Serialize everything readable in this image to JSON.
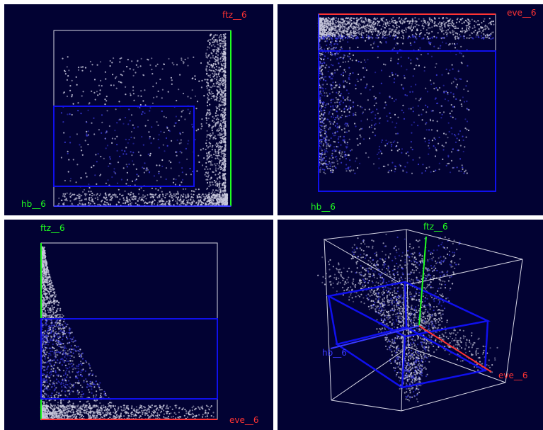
{
  "colors": {
    "background": "#020233",
    "points": "#c8c8dc",
    "gate": "#1010ee",
    "box": "#d8d8e6",
    "axis_hb": "#20ff20",
    "axis_ftz": "#20ff20",
    "axis_eve": "#ff3333",
    "axis_blue": "#3a3aff"
  },
  "chart_data": [
    {
      "type": "scatter",
      "panel": "top-left",
      "xlabel": "hb__6",
      "ylabel": "ftz__6",
      "xlim": [
        0,
        1
      ],
      "ylim": [
        0,
        1
      ],
      "gate": {
        "x": [
          0,
          0.8
        ],
        "y": [
          0.12,
          0.58
        ]
      },
      "clusters": [
        {
          "x": [
            0.86,
            0.97
          ],
          "y": [
            0.0,
            0.98
          ],
          "n": 1100,
          "density_bias": "right"
        },
        {
          "x": [
            0.02,
            0.98
          ],
          "y": [
            0.0,
            0.07
          ],
          "n": 700,
          "density_bias": "right"
        },
        {
          "x": [
            0.04,
            0.88
          ],
          "y": [
            0.05,
            0.85
          ],
          "n": 500,
          "density_bias": "none"
        }
      ]
    },
    {
      "type": "scatter",
      "panel": "top-right",
      "xlabel": "hb__6",
      "ylabel": "eve__6",
      "xlim": [
        0,
        1
      ],
      "ylim": [
        0,
        1
      ],
      "gate": {
        "x": [
          0,
          1
        ],
        "y": [
          0,
          0.88
        ]
      },
      "clusters": [
        {
          "x": [
            0.0,
            0.99
          ],
          "y": [
            0.86,
            0.98
          ],
          "n": 1300,
          "density_bias": "left"
        },
        {
          "x": [
            0.0,
            0.18
          ],
          "y": [
            0.1,
            0.96
          ],
          "n": 700,
          "density_bias": "left"
        },
        {
          "x": [
            0.06,
            0.85
          ],
          "y": [
            0.1,
            0.85
          ],
          "n": 550,
          "density_bias": "none"
        }
      ]
    },
    {
      "type": "scatter",
      "panel": "bottom-left",
      "xlabel": "eve__6",
      "ylabel": "ftz__6",
      "xlim": [
        0,
        1
      ],
      "ylim": [
        0,
        1
      ],
      "gate": {
        "x": [
          0,
          1
        ],
        "y": [
          0.12,
          0.57
        ]
      },
      "clusters": [
        {
          "x": [
            0.0,
            0.45
          ],
          "y": [
            0.0,
            0.98
          ],
          "n": 1600,
          "density_bias": "triangle"
        },
        {
          "x": [
            0.0,
            0.98
          ],
          "y": [
            0.0,
            0.08
          ],
          "n": 900,
          "density_bias": "left"
        }
      ]
    },
    {
      "type": "scatter3d",
      "panel": "bottom-right",
      "axes": [
        "eve__6",
        "ftz__6",
        "hb__6"
      ],
      "axis_labels": {
        "x": "eve__6",
        "y": "ftz__6",
        "z": "hb__6"
      }
    }
  ]
}
